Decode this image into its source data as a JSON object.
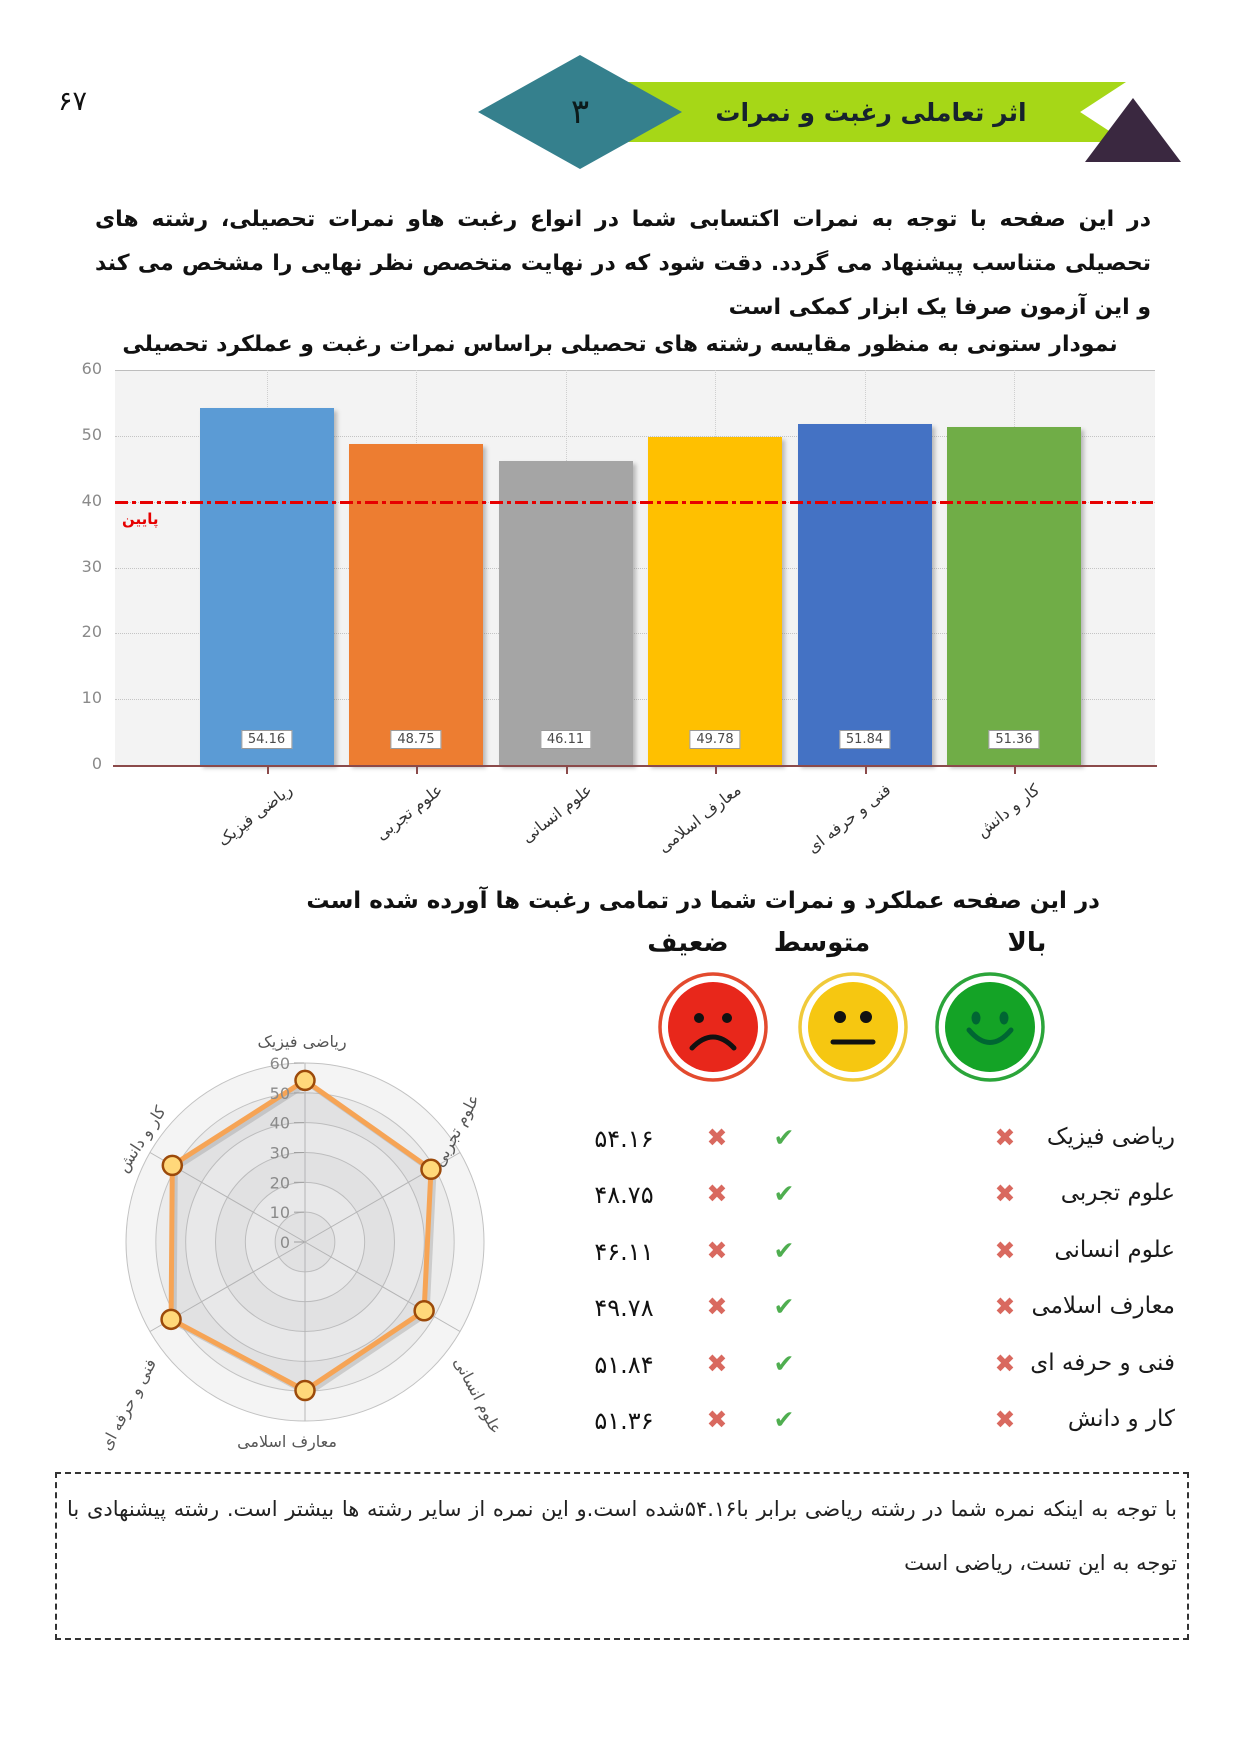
{
  "page_number": "۶۷",
  "header": {
    "title": "اثر تعاملی رغبت و نمرات",
    "section_number": "۳",
    "banner_color": "#a6d717",
    "diamond_color": "#35808d",
    "corner_color": "#3a2840"
  },
  "intro_paragraph": "در این صفحه با توجه به نمرات اکتسابی شما در انواع رغبت هاو نمرات تحصیلی، رشته های تحصیلی متناسب پیشنهاد می گردد. دقت شود که در نهایت متخصص نظر نهایی را مشخص می کند و این آزمون صرفا یک ابزار کمکی است",
  "section2_title": "در این صفحه عملکرد و نمرات شما در تمامی رغبت ها آورده شده است",
  "legend": [
    {
      "label": "ضعیف",
      "mood": "sad",
      "face_color": "#e8271b",
      "ring_color": "#e34a2e"
    },
    {
      "label": "متوسط",
      "mood": "neutral",
      "face_color": "#f6c711",
      "ring_color": "#f0ca3a"
    },
    {
      "label": "بالا",
      "mood": "happy",
      "face_color": "#14a326",
      "ring_color": "#2ba53a"
    }
  ],
  "results_table": {
    "cross_color": "#d9695f",
    "check_color": "#4fae50",
    "rows": [
      {
        "label": "ریاضی فیزیک",
        "value": "۵۴.۱۶",
        "weak": "cross",
        "medium": "check",
        "high": "cross"
      },
      {
        "label": "علوم تجربی",
        "value": "۴۸.۷۵",
        "weak": "cross",
        "medium": "check",
        "high": "cross"
      },
      {
        "label": "علوم انسانی",
        "value": "۴۶.۱۱",
        "weak": "cross",
        "medium": "check",
        "high": "cross"
      },
      {
        "label": "معارف اسلامی",
        "value": "۴۹.۷۸",
        "weak": "cross",
        "medium": "check",
        "high": "cross"
      },
      {
        "label": "فنی و حرفه ای",
        "value": "۵۱.۸۴",
        "weak": "cross",
        "medium": "check",
        "high": "cross"
      },
      {
        "label": "کار و دانش",
        "value": "۵۱.۳۶",
        "weak": "cross",
        "medium": "check",
        "high": "cross"
      }
    ]
  },
  "footer_note": "با توجه به اینکه نمره شما در رشته ریاضی برابر با۵۴.۱۶شده است.و این نمره از سایر رشته ها بیشتر است. رشته پیشنهادی با توجه به این تست، ریاضی است",
  "chart_data": [
    {
      "type": "bar",
      "title": "نمودار ستونی به منظور مقایسه رشته های تحصیلی براساس نمرات رغبت و عملکرد تحصیلی",
      "categories": [
        "ریاضی فیزیک",
        "علوم تجربی",
        "علوم انسانی",
        "معارف اسلامی",
        "فنی و حرفه ای",
        "کار و دانش"
      ],
      "values": [
        54.16,
        48.75,
        46.11,
        49.78,
        51.84,
        51.36
      ],
      "value_labels": [
        "54.16",
        "48.75",
        "46.11",
        "49.78",
        "51.84",
        "51.36"
      ],
      "bar_colors": [
        "#5b9bd5",
        "#ed7d31",
        "#a5a5a5",
        "#ffc000",
        "#4472c4",
        "#70ad47"
      ],
      "ylim": [
        0,
        60
      ],
      "ytick_step": 10,
      "grid": true,
      "legend_position": "none",
      "reference_line": {
        "value": 40,
        "label": "پایین",
        "color": "#e60000",
        "style": "dash-dot"
      }
    },
    {
      "type": "radar",
      "title": "",
      "categories": [
        "ریاضی فیزیک",
        "علوم تجربی",
        "علوم انسانی",
        "معارف اسلامی",
        "فنی و حرفه ای",
        "کار و دانش"
      ],
      "values": [
        54.16,
        48.75,
        46.11,
        49.78,
        51.84,
        51.36
      ],
      "rlim": [
        0,
        60
      ],
      "rtick_step": 10,
      "grid": true,
      "line_color": "#f6a455",
      "marker_fill": "#ffd87a",
      "marker_stroke": "#9c4a0a"
    }
  ]
}
